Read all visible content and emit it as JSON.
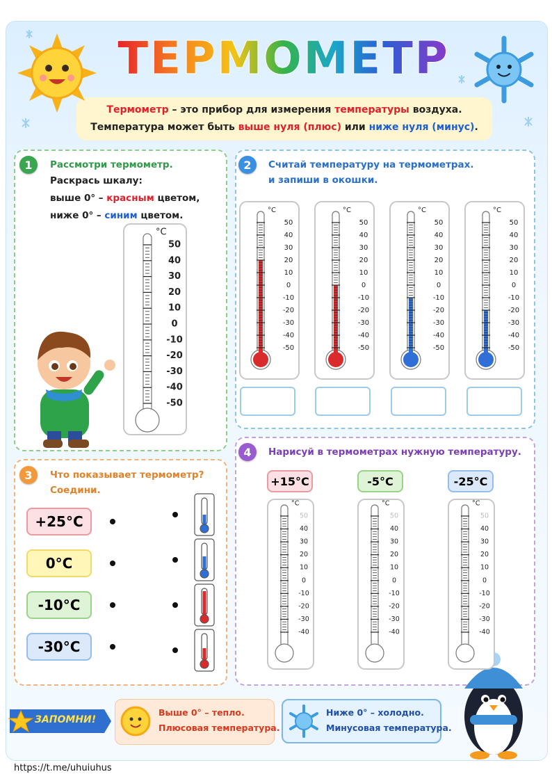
{
  "header": {
    "title": "ТЕРМОМЕТР",
    "intro": [
      [
        "Термометр",
        " – это прибор для измерения ",
        "температуры",
        " воздуха."
      ],
      [
        "Температура может быть ",
        "выше нуля (плюс)",
        " или ",
        "ниже нуля (минус)",
        "."
      ]
    ]
  },
  "section1": {
    "number": "1",
    "title": "Рассмотри термометр.",
    "lines": [
      [
        "Раскрась шкалу:"
      ],
      [
        "выше 0° – ",
        "красным",
        " цветом,"
      ],
      [
        "ниже 0° – ",
        "синим",
        " цветом."
      ]
    ],
    "thermometer": {
      "unit": "°С",
      "scale": [
        50,
        40,
        30,
        20,
        10,
        0,
        -10,
        -20,
        -30,
        -40,
        -50
      ]
    }
  },
  "section2": {
    "number": "2",
    "title": [
      "Считай температуру на термометрах.",
      "и запиши в окошки."
    ],
    "unit": "°С",
    "scale": [
      50,
      40,
      30,
      20,
      10,
      0,
      -10,
      -20,
      -30,
      -40,
      -50
    ],
    "thermometers": [
      {
        "level": 20,
        "color": "#d92b2b"
      },
      {
        "level": 0,
        "color": "#d92b2b"
      },
      {
        "level": -10,
        "color": "#2f6fd6"
      },
      {
        "level": -20,
        "color": "#2f6fd6"
      }
    ]
  },
  "section3": {
    "number": "3",
    "title": [
      "Что показывает термометр?",
      "Соедини."
    ],
    "options": [
      "+25°С",
      "0°С",
      "-10°С",
      "-30°С"
    ]
  },
  "section4": {
    "number": "4",
    "title": "Нарисуй в термометрах нужную температуру.",
    "unit": "°С",
    "scale": [
      50,
      40,
      30,
      20,
      10,
      0,
      -10,
      -20,
      -30,
      -40
    ],
    "targets": [
      "+15°С",
      "-5°С",
      "-25°С"
    ]
  },
  "reminder": {
    "badge": "ЗАПОМНИ!",
    "warm": [
      "Выше 0° – тепло.",
      "Плюсовая температура."
    ],
    "cold": [
      "Ниже 0° – холодно.",
      "Минусовая температура."
    ]
  },
  "footer": {
    "url": "https://t.me/uhuiuhus"
  }
}
